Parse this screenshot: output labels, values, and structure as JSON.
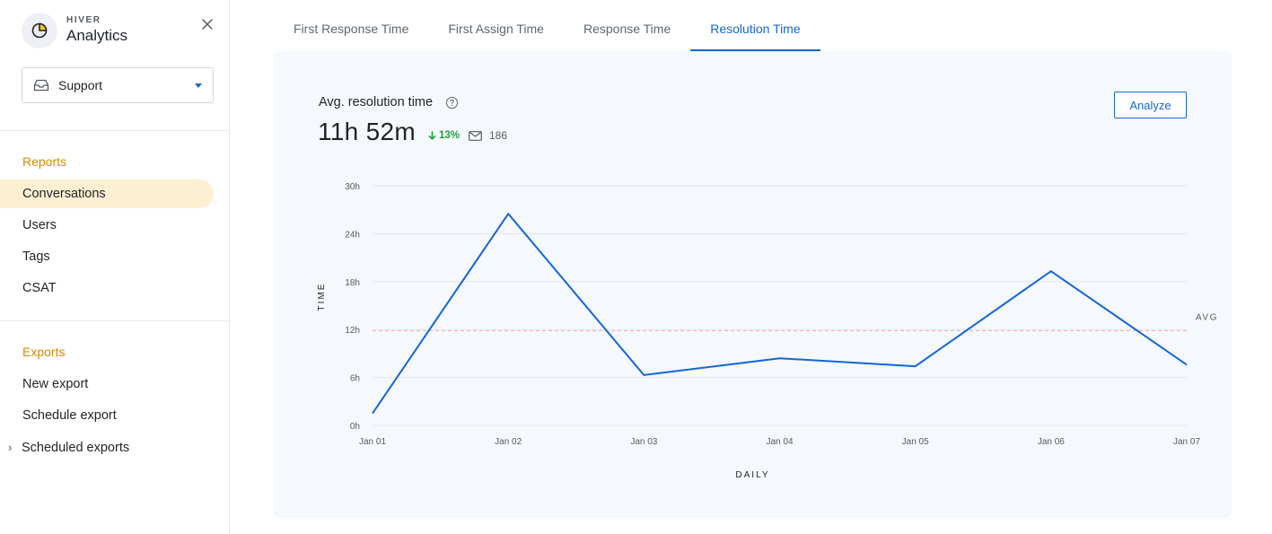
{
  "brand": {
    "small": "HIVER",
    "big": "Analytics"
  },
  "inbox_select": {
    "value": "Support"
  },
  "sidebar": {
    "reports_title": "Reports",
    "reports": [
      {
        "label": "Conversations",
        "active": true
      },
      {
        "label": "Users"
      },
      {
        "label": "Tags"
      },
      {
        "label": "CSAT"
      }
    ],
    "exports_title": "Exports",
    "exports": [
      {
        "label": "New export"
      },
      {
        "label": "Schedule export"
      },
      {
        "label": "Scheduled exports",
        "expandable": true
      }
    ]
  },
  "tabs": [
    {
      "label": "First Response Time"
    },
    {
      "label": "First Assign Time"
    },
    {
      "label": "Response Time"
    },
    {
      "label": "Resolution Time",
      "active": true
    }
  ],
  "metric": {
    "title": "Avg. resolution time",
    "value": "11h 52m",
    "delta": "13%",
    "delta_direction": "down",
    "conversations": "186"
  },
  "analyze_label": "Analyze",
  "icons": {
    "logo": "pie-chart-icon",
    "close": "close-icon",
    "inbox": "inbox-icon",
    "help": "help-circle-icon",
    "delta": "arrow-down-icon",
    "mail": "mail-icon",
    "expand": "chevron-right-icon"
  },
  "colors": {
    "accent": "#1565d8",
    "section": "#d48a00",
    "active_nav_bg": "#fdefd2",
    "positive": "#1f9d3a",
    "avg_line": "#e8b0b0"
  },
  "chart_data": {
    "type": "line",
    "x": [
      "Jan 01",
      "Jan 02",
      "Jan 03",
      "Jan 04",
      "Jan 05",
      "Jan 06",
      "Jan 07"
    ],
    "series": [
      {
        "values": [
          1.5,
          26.5,
          6.3,
          8.4,
          7.4,
          19.3,
          7.6
        ]
      }
    ],
    "avg": 11.87,
    "avg_label": "AVG",
    "yticks": [
      "0h",
      "6h",
      "12h",
      "18h",
      "24h",
      "30h"
    ],
    "ylim": [
      0,
      30
    ],
    "xlabel": "DAILY",
    "ylabel": "TIME",
    "grid": true
  }
}
